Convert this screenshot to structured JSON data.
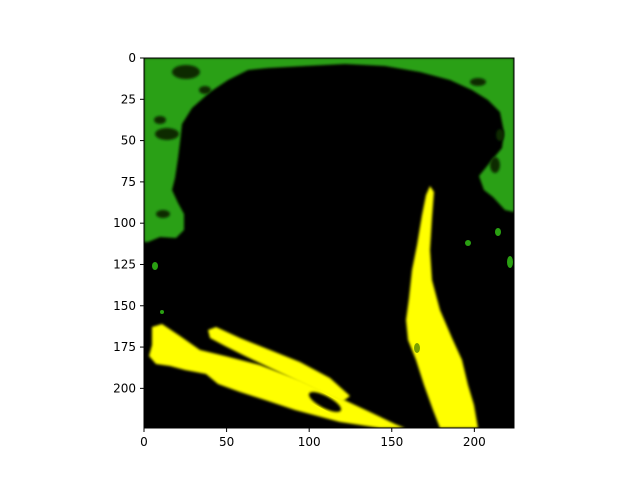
{
  "figure": {
    "x_ticks": [
      0,
      50,
      100,
      150,
      200
    ],
    "y_ticks": [
      0,
      25,
      50,
      75,
      100,
      125,
      150,
      175,
      200
    ],
    "x_range": [
      0,
      224
    ],
    "y_range": [
      0,
      224
    ],
    "y_axis_inverted": true,
    "colors": {
      "background": "#000000",
      "tissue": "#2aa012",
      "highlight": "#ffff00",
      "axes": "#000000",
      "page": "#ffffff"
    }
  }
}
